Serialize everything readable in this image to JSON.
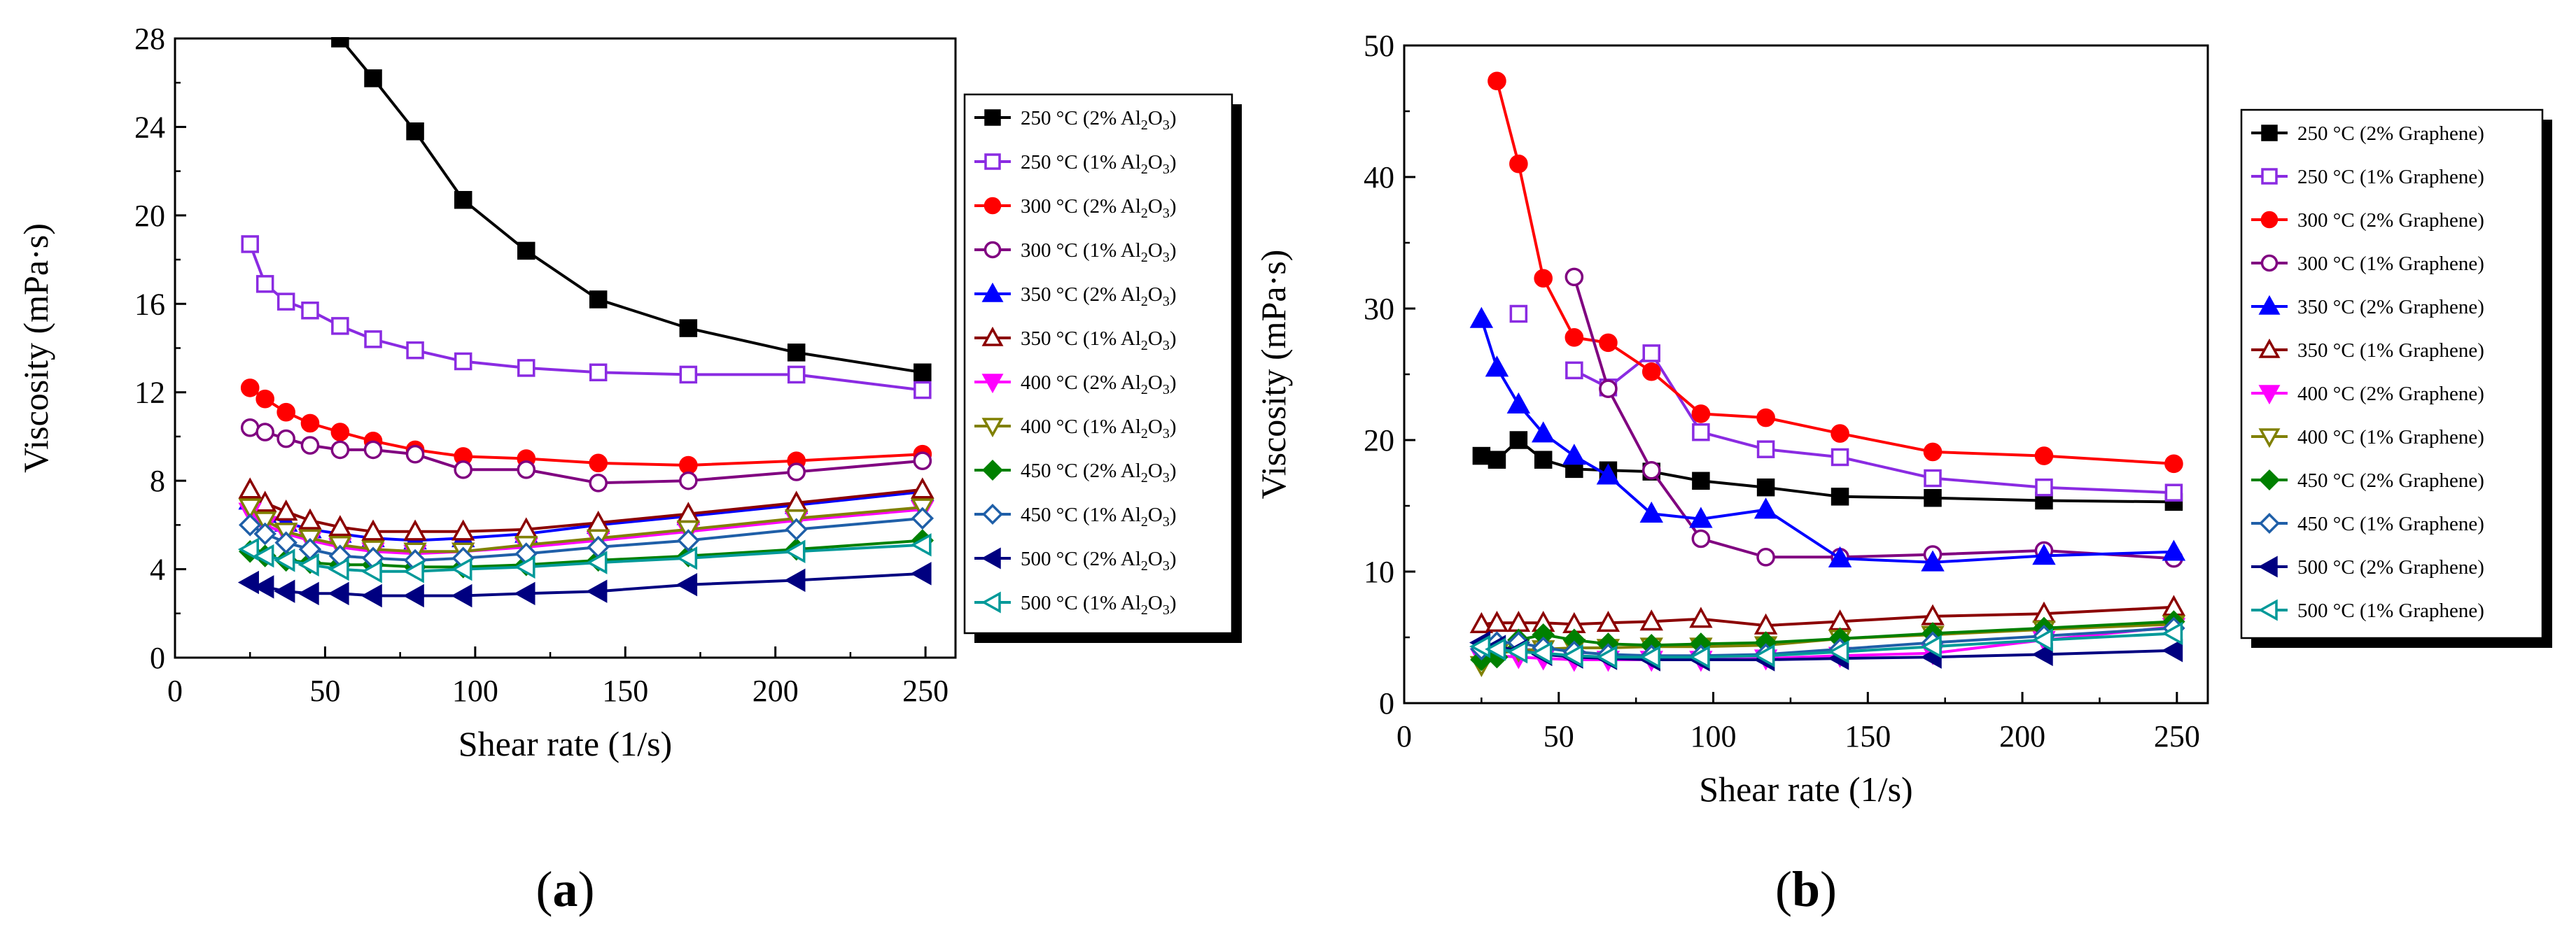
{
  "chart_data": [
    {
      "type": "line",
      "panel_label_open": "(",
      "panel_label_letter": "a",
      "panel_label_close": ")",
      "xlabel": "Shear rate (1/s)",
      "ylabel": "Viscosity (mPa·s)",
      "xlim": [
        0,
        260
      ],
      "ylim": [
        0,
        28
      ],
      "xticks": [
        0,
        50,
        100,
        150,
        200,
        250
      ],
      "yticks": [
        0,
        4,
        8,
        12,
        16,
        20,
        24,
        28
      ],
      "grid": false,
      "legend_position": "right, outside",
      "x": [
        25,
        30,
        37,
        45,
        55,
        66,
        80,
        96,
        117,
        141,
        171,
        207,
        249
      ],
      "series": [
        {
          "name": "250 °C (2% Al2O3)",
          "temp": "250 °C",
          "pct": "2%",
          "material": "Al2O3",
          "sub": "Al2O3",
          "color": "#000000",
          "marker": "square",
          "filled": true,
          "values": [
            null,
            null,
            null,
            null,
            28.0,
            26.2,
            23.8,
            20.7,
            18.4,
            16.2,
            14.9,
            13.8,
            12.9
          ]
        },
        {
          "name": "250 °C (1% Al2O3)",
          "temp": "250 °C",
          "pct": "1%",
          "material": "Al2O3",
          "sub": "Al2O3",
          "color": "#8a2be2",
          "marker": "square",
          "filled": false,
          "values": [
            18.7,
            16.9,
            16.1,
            15.7,
            15.0,
            14.4,
            13.9,
            13.4,
            13.1,
            12.9,
            12.8,
            12.8,
            12.1
          ]
        },
        {
          "name": "300 °C (2% Al2O3)",
          "temp": "300 °C",
          "pct": "2%",
          "material": "Al2O3",
          "sub": "Al2O3",
          "color": "#ff0000",
          "marker": "circle",
          "filled": true,
          "values": [
            12.2,
            11.7,
            11.1,
            10.6,
            10.2,
            9.8,
            9.4,
            9.1,
            9.0,
            8.8,
            8.7,
            8.9,
            9.2
          ]
        },
        {
          "name": "300 °C (1% Al2O3)",
          "temp": "300 °C",
          "pct": "1%",
          "material": "Al2O3",
          "sub": "Al2O3",
          "color": "#800080",
          "marker": "circle",
          "filled": false,
          "values": [
            10.4,
            10.2,
            9.9,
            9.6,
            9.4,
            9.4,
            9.2,
            8.5,
            8.5,
            7.9,
            8.0,
            8.4,
            8.9
          ]
        },
        {
          "name": "350 °C (2% Al2O3)",
          "temp": "350 °C",
          "pct": "2%",
          "material": "Al2O3",
          "sub": "Al2O3",
          "color": "#0000ff",
          "marker": "triangle-up",
          "filled": true,
          "values": [
            7.1,
            6.5,
            6.1,
            5.8,
            5.6,
            5.4,
            5.3,
            5.4,
            5.6,
            6.0,
            6.4,
            6.9,
            7.5
          ]
        },
        {
          "name": "350 °C (1% Al2O3)",
          "temp": "350 °C",
          "pct": "1%",
          "material": "Al2O3",
          "sub": "Al2O3",
          "color": "#8b0000",
          "marker": "triangle-up",
          "filled": false,
          "values": [
            7.6,
            7.0,
            6.6,
            6.2,
            5.9,
            5.7,
            5.7,
            5.7,
            5.8,
            6.1,
            6.5,
            7.0,
            7.6
          ]
        },
        {
          "name": "400 °C (2% Al2O3)",
          "temp": "400 °C",
          "pct": "2%",
          "material": "Al2O3",
          "sub": "Al2O3",
          "color": "#ff00ff",
          "marker": "triangle-down",
          "filled": true,
          "values": [
            6.6,
            6.0,
            5.6,
            5.3,
            5.0,
            4.8,
            4.7,
            4.8,
            5.0,
            5.3,
            5.7,
            6.2,
            6.7
          ]
        },
        {
          "name": "400 °C (1% Al2O3)",
          "temp": "400 °C",
          "pct": "1%",
          "material": "Al2O3",
          "sub": "Al2O3",
          "color": "#808000",
          "marker": "triangle-down",
          "filled": false,
          "values": [
            6.8,
            6.2,
            5.7,
            5.4,
            5.1,
            4.9,
            4.8,
            4.8,
            5.1,
            5.4,
            5.8,
            6.3,
            6.8
          ]
        },
        {
          "name": "450 °C (2% Al2O3)",
          "temp": "450 °C",
          "pct": "2%",
          "material": "Al2O3",
          "sub": "Al2O3",
          "color": "#008000",
          "marker": "diamond",
          "filled": true,
          "values": [
            4.8,
            4.6,
            4.4,
            4.3,
            4.2,
            4.2,
            4.1,
            4.1,
            4.2,
            4.4,
            4.6,
            4.9,
            5.3
          ]
        },
        {
          "name": "450 °C (1% Al2O3)",
          "temp": "450 °C",
          "pct": "1%",
          "material": "Al2O3",
          "sub": "Al2O3",
          "color": "#1f5fa8",
          "marker": "diamond",
          "filled": false,
          "values": [
            6.0,
            5.6,
            5.2,
            4.9,
            4.6,
            4.5,
            4.4,
            4.5,
            4.7,
            5.0,
            5.3,
            5.8,
            6.3
          ]
        },
        {
          "name": "500 °C (2% Al2O3)",
          "temp": "500 °C",
          "pct": "2%",
          "material": "Al2O3",
          "sub": "Al2O3",
          "color": "#000080",
          "marker": "triangle-left",
          "filled": true,
          "values": [
            3.4,
            3.2,
            3.0,
            2.9,
            2.9,
            2.8,
            2.8,
            2.8,
            2.9,
            3.0,
            3.3,
            3.5,
            3.8
          ]
        },
        {
          "name": "500 °C (1% Al2O3)",
          "temp": "500 °C",
          "pct": "1%",
          "material": "Al2O3",
          "sub": "Al2O3",
          "color": "#009999",
          "marker": "triangle-left",
          "filled": false,
          "values": [
            4.9,
            4.6,
            4.4,
            4.2,
            4.0,
            3.9,
            3.9,
            4.0,
            4.1,
            4.3,
            4.5,
            4.8,
            5.1
          ]
        }
      ]
    },
    {
      "type": "line",
      "panel_label_open": "(",
      "panel_label_letter": "b",
      "panel_label_close": ")",
      "xlabel": "Shear rate (1/s)",
      "ylabel": "Viscosity (mPa·s)",
      "xlim": [
        0,
        260
      ],
      "ylim": [
        0,
        50
      ],
      "xticks": [
        0,
        50,
        100,
        150,
        200,
        250
      ],
      "yticks": [
        0,
        10,
        20,
        30,
        40,
        50
      ],
      "grid": false,
      "legend_position": "right, outside",
      "x": [
        25,
        30,
        37,
        45,
        55,
        66,
        80,
        96,
        117,
        141,
        171,
        207,
        249
      ],
      "series": [
        {
          "name": "250 °C (2% Graphene)",
          "temp": "250 °C",
          "pct": "2%",
          "material": "Graphene",
          "sub": "",
          "color": "#000000",
          "marker": "square",
          "filled": true,
          "values": [
            18.8,
            18.5,
            20.0,
            18.5,
            17.8,
            17.7,
            17.6,
            16.9,
            16.4,
            15.7,
            15.6,
            15.4,
            15.3
          ]
        },
        {
          "name": "250 °C (1% Graphene)",
          "temp": "250 °C",
          "pct": "1%",
          "material": "Graphene",
          "sub": "",
          "color": "#8a2be2",
          "marker": "square",
          "filled": false,
          "values": [
            null,
            null,
            29.6,
            null,
            25.3,
            24.0,
            26.6,
            20.6,
            19.3,
            18.7,
            17.1,
            16.4,
            16.0
          ]
        },
        {
          "name": "300 °C (2% Graphene)",
          "temp": "300 °C",
          "pct": "2%",
          "material": "Graphene",
          "sub": "",
          "color": "#ff0000",
          "marker": "circle",
          "filled": true,
          "values": [
            null,
            47.3,
            41.0,
            32.3,
            27.8,
            27.4,
            25.2,
            22.0,
            21.7,
            20.5,
            19.1,
            18.8,
            18.2
          ]
        },
        {
          "name": "300 °C (1% Graphene)",
          "temp": "300 °C",
          "pct": "1%",
          "material": "Graphene",
          "sub": "",
          "color": "#800080",
          "marker": "circle",
          "filled": false,
          "values": [
            null,
            null,
            null,
            null,
            32.4,
            23.9,
            17.7,
            12.5,
            11.1,
            11.1,
            11.3,
            11.6,
            11.0
          ]
        },
        {
          "name": "350 °C (2% Graphene)",
          "temp": "350 °C",
          "pct": "2%",
          "material": "Graphene",
          "sub": "",
          "color": "#0000ff",
          "marker": "triangle-up",
          "filled": true,
          "values": [
            29.2,
            25.5,
            22.7,
            20.5,
            18.8,
            17.3,
            14.4,
            14.0,
            14.7,
            11.0,
            10.7,
            11.2,
            11.5
          ]
        },
        {
          "name": "350 °C (1% Graphene)",
          "temp": "350 °C",
          "pct": "1%",
          "material": "Graphene",
          "sub": "",
          "color": "#8b0000",
          "marker": "triangle-up",
          "filled": false,
          "values": [
            6.0,
            6.1,
            6.1,
            6.1,
            6.0,
            6.1,
            6.2,
            6.4,
            5.9,
            6.2,
            6.6,
            6.8,
            7.3
          ]
        },
        {
          "name": "400 °C (2% Graphene)",
          "temp": "400 °C",
          "pct": "2%",
          "material": "Graphene",
          "sub": "",
          "color": "#ff00ff",
          "marker": "triangle-down",
          "filled": true,
          "values": [
            3.5,
            3.6,
            3.5,
            3.4,
            3.3,
            3.3,
            3.3,
            3.3,
            3.4,
            3.6,
            3.8,
            4.8,
            5.8
          ]
        },
        {
          "name": "400 °C (1% Graphene)",
          "temp": "400 °C",
          "pct": "1%",
          "material": "Graphene",
          "sub": "",
          "color": "#808000",
          "marker": "triangle-down",
          "filled": false,
          "values": [
            2.9,
            3.8,
            4.0,
            4.1,
            4.2,
            4.2,
            4.3,
            4.3,
            4.4,
            4.9,
            5.2,
            5.6,
            6.0
          ]
        },
        {
          "name": "450 °C (2% Graphene)",
          "temp": "450 °C",
          "pct": "2%",
          "material": "Graphene",
          "sub": "",
          "color": "#008000",
          "marker": "diamond",
          "filled": true,
          "values": [
            3.3,
            3.5,
            4.8,
            5.2,
            4.8,
            4.5,
            4.4,
            4.5,
            4.6,
            4.9,
            5.3,
            5.7,
            6.2
          ]
        },
        {
          "name": "450 °C (1% Graphene)",
          "temp": "450 °C",
          "pct": "1%",
          "material": "Graphene",
          "sub": "",
          "color": "#1f5fa8",
          "marker": "diamond",
          "filled": false,
          "values": [
            4.1,
            4.6,
            4.6,
            4.2,
            3.9,
            3.7,
            3.6,
            3.6,
            3.7,
            4.1,
            4.6,
            5.1,
            5.7
          ]
        },
        {
          "name": "500 °C (2% Graphene)",
          "temp": "500 °C",
          "pct": "2%",
          "material": "Graphene",
          "sub": "",
          "color": "#000080",
          "marker": "triangle-left",
          "filled": true,
          "values": [
            4.6,
            4.3,
            4.0,
            3.7,
            3.5,
            3.4,
            3.3,
            3.3,
            3.3,
            3.4,
            3.5,
            3.7,
            4.0
          ]
        },
        {
          "name": "500 °C (1% Graphene)",
          "temp": "500 °C",
          "pct": "1%",
          "material": "Graphene",
          "sub": "",
          "color": "#009999",
          "marker": "triangle-left",
          "filled": false,
          "values": [
            4.3,
            4.1,
            3.9,
            3.8,
            3.6,
            3.5,
            3.5,
            3.5,
            3.6,
            3.9,
            4.3,
            4.8,
            5.3
          ]
        }
      ]
    }
  ]
}
